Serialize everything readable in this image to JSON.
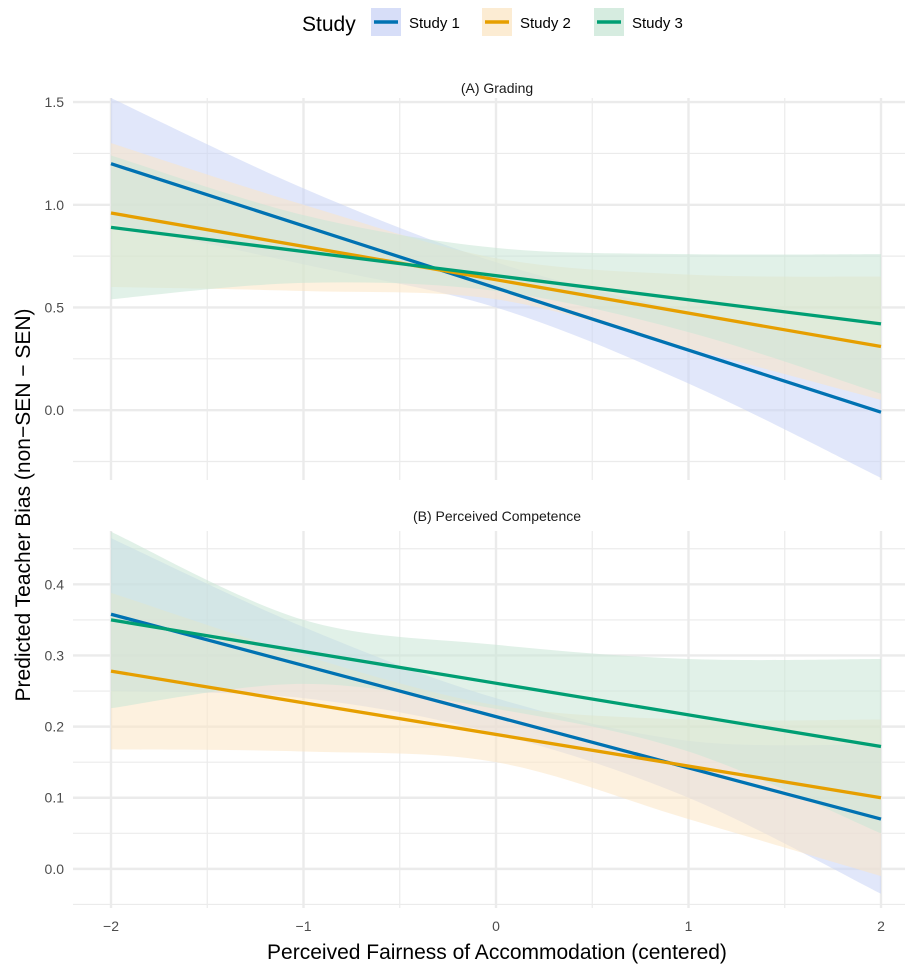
{
  "legend": {
    "title": "Study",
    "placement": "top",
    "items": [
      {
        "name": "Study 1",
        "color": "#0072B2",
        "fill": "#C9D3F5"
      },
      {
        "name": "Study 2",
        "color": "#E69F00",
        "fill": "#FBE6C4"
      },
      {
        "name": "Study 3",
        "color": "#009E73",
        "fill": "#C8E5D5"
      }
    ]
  },
  "y_axis_label": "Predicted Teacher Bias (non−SEN − SEN)",
  "x_axis_label": "Perceived Fairness of Accommodation (centered)",
  "colors": {
    "grid": "#EBEBEB",
    "text": "#4D4D4D",
    "title": "#000000"
  },
  "chart_data": [
    {
      "type": "line",
      "title": "(A) Grading",
      "xlim": [
        -2,
        2
      ],
      "ylim": [
        -0.34,
        1.52
      ],
      "x_ticks": [
        -2,
        -1,
        0,
        1,
        2
      ],
      "y_ticks": [
        0.0,
        0.5,
        1.0,
        1.5
      ],
      "y_tick_labels": [
        "0.0",
        "0.5",
        "1.0",
        "1.5"
      ],
      "grid": true,
      "x": [
        -2,
        2
      ],
      "series": [
        {
          "name": "Study 1",
          "values": [
            1.2,
            -0.01
          ],
          "ci": [
            [
              -2,
              0.91,
              1.52
            ],
            [
              -1,
              0.71,
              1.08
            ],
            [
              0,
              0.5,
              0.72
            ],
            [
              1,
              0.13,
              0.48
            ],
            [
              2,
              -0.33,
              0.3
            ]
          ]
        },
        {
          "name": "Study 2",
          "values": [
            0.96,
            0.31
          ],
          "ci": [
            [
              -2,
              0.6,
              1.3
            ],
            [
              -1,
              0.58,
              1.0
            ],
            [
              0,
              0.54,
              0.74
            ],
            [
              1,
              0.3,
              0.66
            ],
            [
              2,
              0.05,
              0.65
            ]
          ]
        },
        {
          "name": "Study 3",
          "values": [
            0.89,
            0.42
          ],
          "ci": [
            [
              -2,
              0.54,
              1.24
            ],
            [
              -1,
              0.62,
              0.95
            ],
            [
              0,
              0.58,
              0.79
            ],
            [
              1,
              0.38,
              0.76
            ],
            [
              2,
              0.08,
              0.76
            ]
          ]
        }
      ]
    },
    {
      "type": "line",
      "title": "(B) Perceived Competence",
      "xlim": [
        -2,
        2
      ],
      "ylim": [
        -0.055,
        0.475
      ],
      "x_ticks": [
        -2,
        -1,
        0,
        1,
        2
      ],
      "y_ticks": [
        0.0,
        0.1,
        0.2,
        0.3,
        0.4
      ],
      "y_tick_labels": [
        "0.0",
        "0.1",
        "0.2",
        "0.3",
        "0.4"
      ],
      "grid": true,
      "x": [
        -2,
        2
      ],
      "series": [
        {
          "name": "Study 1",
          "values": [
            0.358,
            0.07
          ],
          "ci": [
            [
              -2,
              0.25,
              0.465
            ],
            [
              -1,
              0.24,
              0.34
            ],
            [
              0,
              0.19,
              0.24
            ],
            [
              1,
              0.1,
              0.18
            ],
            [
              2,
              -0.035,
              0.175
            ]
          ]
        },
        {
          "name": "Study 2",
          "values": [
            0.278,
            0.1
          ],
          "ci": [
            [
              -2,
              0.168,
              0.388
            ],
            [
              -1,
              0.165,
              0.3
            ],
            [
              0,
              0.15,
              0.23
            ],
            [
              1,
              0.07,
              0.21
            ],
            [
              2,
              -0.01,
              0.21
            ]
          ]
        },
        {
          "name": "Study 3",
          "values": [
            0.35,
            0.172
          ],
          "ci": [
            [
              -2,
              0.226,
              0.474
            ],
            [
              -1,
              0.26,
              0.35
            ],
            [
              0,
              0.225,
              0.315
            ],
            [
              1,
              0.165,
              0.295
            ],
            [
              2,
              0.05,
              0.295
            ]
          ]
        }
      ]
    }
  ]
}
